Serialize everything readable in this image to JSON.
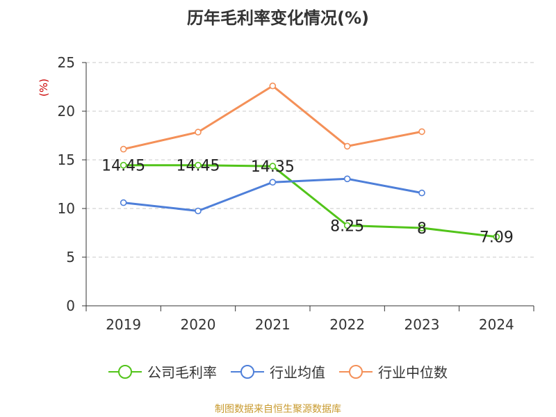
{
  "chart_data": {
    "type": "line",
    "title": "历年毛利率变化情况(%)",
    "ylabel": "(%)",
    "xlabel": "",
    "categories": [
      "2019",
      "2020",
      "2021",
      "2022",
      "2023",
      "2024"
    ],
    "ylim": [
      0,
      25
    ],
    "yticks": [
      0,
      5,
      10,
      15,
      20,
      25
    ],
    "grid": true,
    "legend_position": "bottom",
    "series": [
      {
        "name": "公司毛利率",
        "color": "#52c41a",
        "values": [
          14.45,
          14.45,
          14.35,
          8.25,
          8,
          7.09
        ],
        "labels": [
          "14.45",
          "14.45",
          "14.35",
          "8.25",
          "8",
          "7.09"
        ]
      },
      {
        "name": "行业均值",
        "color": "#4e7fd9",
        "values": [
          10.6,
          9.75,
          12.7,
          13.05,
          11.6,
          null
        ]
      },
      {
        "name": "行业中位数",
        "color": "#f49058",
        "values": [
          16.1,
          17.85,
          22.6,
          16.4,
          17.9,
          null
        ]
      }
    ],
    "source": "制图数据来自恒生聚源数据库"
  }
}
